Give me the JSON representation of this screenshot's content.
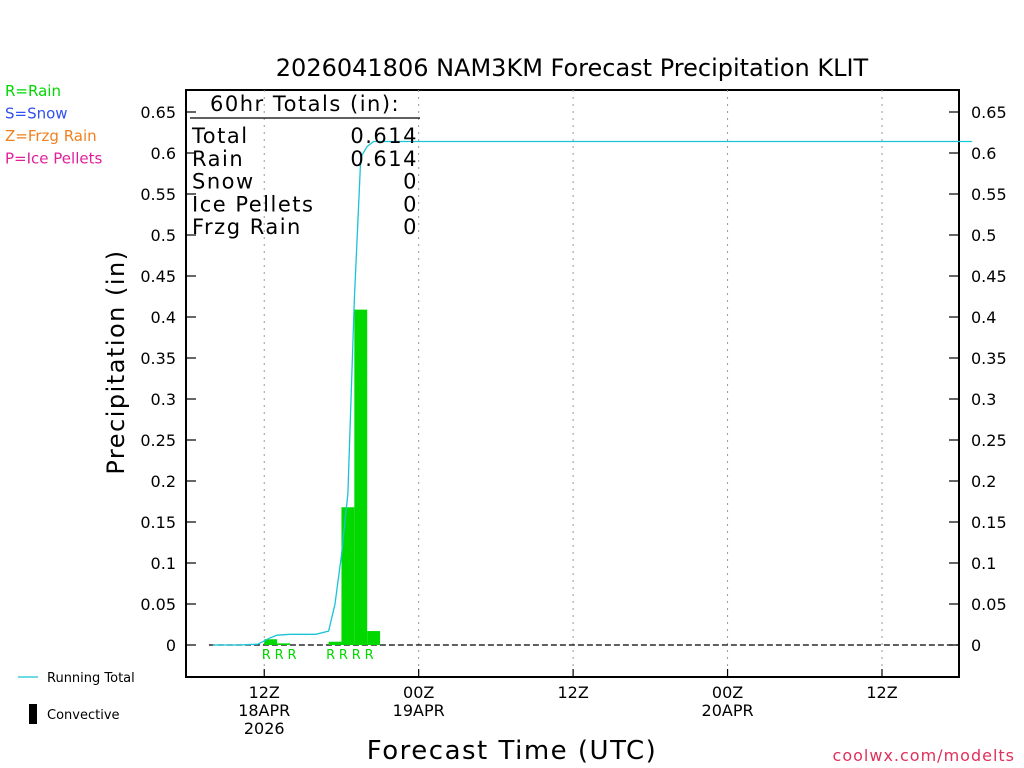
{
  "colors": {
    "rain": "#00d800",
    "snow": "#3050f0",
    "frzg": "#f08020",
    "ice": "#e0209a",
    "running_total": "#19c3d8",
    "bar": "#00d800",
    "axis": "#000000",
    "grid": "#999999",
    "watermark": "#e0305a"
  },
  "legend_left": [
    {
      "text": "R=Rain",
      "color_key": "rain"
    },
    {
      "text": "S=Snow",
      "color_key": "snow"
    },
    {
      "text": "Z=Frzg Rain",
      "color_key": "frzg"
    },
    {
      "text": "P=Ice Pellets",
      "color_key": "ice"
    }
  ],
  "legend_bottom": {
    "running_total": "Running Total",
    "convective": "Convective"
  },
  "totals_box": {
    "title": "60hr Totals (in):",
    "rows": [
      {
        "label": "Total",
        "value": "0.614"
      },
      {
        "label": "Rain",
        "value": "0.614"
      },
      {
        "label": "Snow",
        "value": "0"
      },
      {
        "label": "Ice Pellets",
        "value": "0"
      },
      {
        "label": "Frzg Rain",
        "value": "0"
      }
    ]
  },
  "watermark": "coolwx.com/modelts",
  "chart_data": {
    "type": "bar",
    "title": "2026041806 NAM3KM Forecast Precipitation KLIT",
    "xlabel": "Forecast Time (UTC)",
    "ylabel": "Precipitation (in)",
    "ylim": [
      -0.04,
      0.65
    ],
    "yticks": [
      0,
      0.05,
      0.1,
      0.15,
      0.2,
      0.25,
      0.3,
      0.35,
      0.4,
      0.45,
      0.5,
      0.55,
      0.6,
      0.65
    ],
    "xlim_hours": [
      7,
      67
    ],
    "x_ticks": [
      {
        "hour": 12,
        "labels": [
          "12Z",
          "18APR",
          "2026"
        ]
      },
      {
        "hour": 24,
        "labels": [
          "00Z",
          "19APR"
        ]
      },
      {
        "hour": 36,
        "labels": [
          "12Z"
        ]
      },
      {
        "hour": 48,
        "labels": [
          "00Z",
          "20APR"
        ]
      },
      {
        "hour": 60,
        "labels": [
          "12Z"
        ]
      }
    ],
    "grid": "vertical dotted at x ticks",
    "bar_width_hours": 1,
    "bars": [
      {
        "hour": 12.5,
        "value": 0.007,
        "convective": 0.0
      },
      {
        "hour": 13.5,
        "value": 0.002,
        "convective": 0.0
      },
      {
        "hour": 17.5,
        "value": 0.004,
        "convective": 0.0
      },
      {
        "hour": 18.5,
        "value": 0.168,
        "convective": 0.0
      },
      {
        "hour": 19.5,
        "value": 0.409,
        "convective": 0.0
      },
      {
        "hour": 20.5,
        "value": 0.017,
        "convective": 0.0
      }
    ],
    "ptype_marks": [
      {
        "hour": 12,
        "text": "R"
      },
      {
        "hour": 13,
        "text": "R"
      },
      {
        "hour": 14,
        "text": "R"
      },
      {
        "hour": 17,
        "text": "R"
      },
      {
        "hour": 18,
        "text": "R"
      },
      {
        "hour": 19,
        "text": "R"
      },
      {
        "hour": 20,
        "text": "R"
      }
    ],
    "running_total": {
      "name": "Running Total",
      "points": [
        [
          8,
          0.0
        ],
        [
          10,
          0.0
        ],
        [
          11.5,
          0.001
        ],
        [
          12,
          0.005
        ],
        [
          12.5,
          0.009
        ],
        [
          13,
          0.012
        ],
        [
          14,
          0.013
        ],
        [
          16,
          0.013
        ],
        [
          17,
          0.017
        ],
        [
          17.5,
          0.05
        ],
        [
          18,
          0.11
        ],
        [
          18.5,
          0.185
        ],
        [
          19,
          0.42
        ],
        [
          19.5,
          0.595
        ],
        [
          20,
          0.608
        ],
        [
          20.5,
          0.614
        ],
        [
          22,
          0.614
        ],
        [
          67,
          0.614
        ]
      ]
    }
  }
}
